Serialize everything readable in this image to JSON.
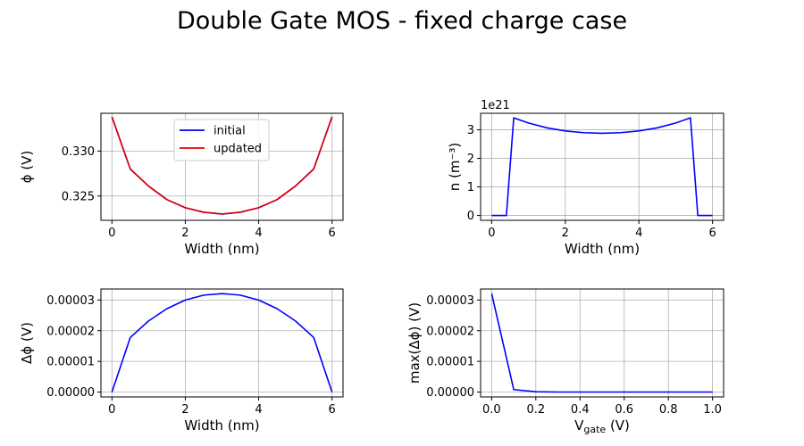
{
  "figure": {
    "title": "Double Gate MOS - fixed charge case"
  },
  "chart_data": [
    {
      "type": "line",
      "xlabel": "Width (nm)",
      "ylabel": "ϕ (V)",
      "xlim": [
        -0.3,
        6.3
      ],
      "ylim": [
        0.3223,
        0.3342
      ],
      "xticks": [
        0,
        2,
        4,
        6
      ],
      "yticks": [
        0.325,
        0.33
      ],
      "ytick_labels": [
        "0.325",
        "0.330"
      ],
      "grid": true,
      "legend": "top-center",
      "series": [
        {
          "name": "initial",
          "color": "#0000ff",
          "x": [
            0,
            0.5,
            1,
            1.5,
            2,
            2.5,
            3,
            3.5,
            4,
            4.5,
            5,
            5.5,
            6
          ],
          "y": [
            0.3338,
            0.328,
            0.3261,
            0.3246,
            0.3237,
            0.3232,
            0.323,
            0.3232,
            0.3237,
            0.3246,
            0.3261,
            0.328,
            0.3338
          ]
        },
        {
          "name": "updated",
          "color": "#e00000",
          "x": [
            0,
            0.5,
            1,
            1.5,
            2,
            2.5,
            3,
            3.5,
            4,
            4.5,
            5,
            5.5,
            6
          ],
          "y": [
            0.3338,
            0.328,
            0.3261,
            0.3246,
            0.3237,
            0.3232,
            0.323,
            0.3232,
            0.3237,
            0.3246,
            0.3261,
            0.328,
            0.3338
          ]
        }
      ]
    },
    {
      "type": "line",
      "xlabel": "Width (nm)",
      "ylabel": "n (m⁻³)",
      "offset_text": "1e21",
      "xlim": [
        -0.3,
        6.3
      ],
      "ylim": [
        -0.17,
        3.58
      ],
      "xticks": [
        0,
        2,
        4,
        6
      ],
      "yticks": [
        0,
        1,
        2,
        3
      ],
      "ytick_labels": [
        "0",
        "1",
        "2",
        "3"
      ],
      "grid": true,
      "series": [
        {
          "color": "#0000ff",
          "x": [
            0,
            0.4,
            0.6,
            1,
            1.5,
            2,
            2.5,
            3,
            3.5,
            4,
            4.5,
            5,
            5.4,
            5.6,
            6
          ],
          "y": [
            0,
            0,
            3.42,
            3.24,
            3.07,
            2.96,
            2.9,
            2.88,
            2.9,
            2.96,
            3.07,
            3.24,
            3.42,
            0,
            0
          ]
        }
      ]
    },
    {
      "type": "line",
      "xlabel": "Width (nm)",
      "ylabel": "Δϕ (V)",
      "xlim": [
        -0.3,
        6.3
      ],
      "ylim": [
        -1.6e-06,
        3.36e-05
      ],
      "xticks": [
        0,
        2,
        4,
        6
      ],
      "yticks": [
        0,
        1e-05,
        2e-05,
        3e-05
      ],
      "ytick_labels": [
        "0.00000",
        "0.00001",
        "0.00002",
        "0.00003"
      ],
      "grid": true,
      "series": [
        {
          "color": "#0000ff",
          "x": [
            0,
            0.5,
            1,
            1.5,
            2,
            2.5,
            3,
            3.5,
            4,
            4.5,
            5,
            5.5,
            6
          ],
          "y": [
            0,
            1.78e-05,
            2.32e-05,
            2.72e-05,
            3e-05,
            3.16e-05,
            3.21e-05,
            3.16e-05,
            3e-05,
            2.72e-05,
            2.32e-05,
            1.78e-05,
            0
          ]
        }
      ]
    },
    {
      "type": "line",
      "xlabel": "V",
      "xlabel_sub": "gate",
      "xlabel_suffix": " (V)",
      "ylabel": "max(Δϕ) (V)",
      "xlim": [
        -0.05,
        1.05
      ],
      "ylim": [
        -1.6e-06,
        3.36e-05
      ],
      "xticks": [
        0,
        0.2,
        0.4,
        0.6,
        0.8,
        1.0
      ],
      "xtick_labels": [
        "0.0",
        "0.2",
        "0.4",
        "0.6",
        "0.8",
        "1.0"
      ],
      "yticks": [
        0,
        1e-05,
        2e-05,
        3e-05
      ],
      "ytick_labels": [
        "0.00000",
        "0.00001",
        "0.00002",
        "0.00003"
      ],
      "grid": true,
      "series": [
        {
          "color": "#0000ff",
          "x": [
            0,
            0.1,
            0.2,
            0.3,
            0.4,
            0.5,
            0.6,
            0.7,
            0.8,
            0.9,
            1.0
          ],
          "y": [
            3.21e-05,
            8e-07,
            1e-07,
            0,
            0,
            0,
            0,
            0,
            0,
            0,
            0
          ]
        }
      ]
    }
  ]
}
